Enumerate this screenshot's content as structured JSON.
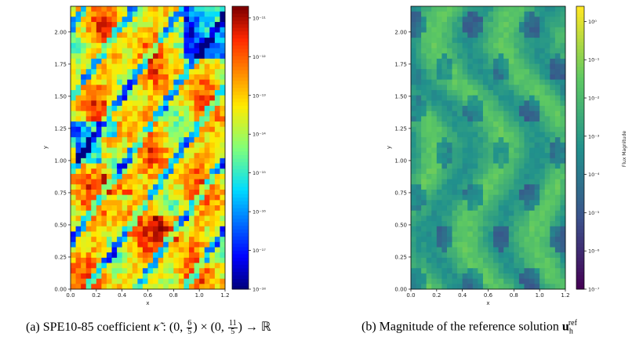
{
  "figures": [
    {
      "caption": {
        "label": "(a)",
        "text_pre": "SPE10-85 coefficient ",
        "symbol": "κ̃",
        "domain_pre": " : (0, ",
        "frac1_num": "6",
        "frac1_den": "5",
        "domain_mid": ") × (0, ",
        "frac2_num": "11",
        "frac2_den": "5",
        "domain_post": ") → ℝ"
      }
    },
    {
      "caption": {
        "label": "(b)",
        "text_pre": "Magnitude of the reference solution ",
        "symbol": "u",
        "sub": "h",
        "sup": "ref"
      }
    }
  ],
  "chart_data": [
    {
      "type": "heatmap",
      "xlabel": "x",
      "ylabel": "y",
      "xlim": [
        0.0,
        1.2
      ],
      "ylim": [
        0.0,
        2.2
      ],
      "xticks": [
        "0.0",
        "0.2",
        "0.4",
        "0.6",
        "0.8",
        "1.0",
        "1.2"
      ],
      "yticks": [
        "0.00",
        "0.25",
        "0.50",
        "0.75",
        "1.00",
        "1.25",
        "1.50",
        "1.75",
        "2.00"
      ],
      "colorbar": {
        "scale": "log",
        "range": [
          1e-18,
          2e-11
        ],
        "colormap": "jet",
        "ticks": [
          "10⁻¹⁸",
          "10⁻¹⁷",
          "10⁻¹⁶",
          "10⁻¹⁵",
          "10⁻¹⁴",
          "10⁻¹³",
          "10⁻¹²",
          "10⁻¹¹"
        ],
        "label": ""
      }
    },
    {
      "type": "heatmap",
      "xlabel": "x",
      "ylabel": "y",
      "xlim": [
        0.0,
        1.2
      ],
      "ylim": [
        0.0,
        2.2
      ],
      "xticks": [
        "0.0",
        "0.2",
        "0.4",
        "0.6",
        "0.8",
        "1.0",
        "1.2"
      ],
      "yticks": [
        "0.00",
        "0.25",
        "0.50",
        "0.75",
        "1.00",
        "1.25",
        "1.50",
        "1.75",
        "2.00"
      ],
      "colorbar": {
        "scale": "log",
        "range": [
          1e-07,
          2.5
        ],
        "colormap": "viridis",
        "ticks": [
          "10⁻⁷",
          "10⁻⁶",
          "10⁻⁵",
          "10⁻⁴",
          "10⁻³",
          "10⁻²",
          "10⁻¹",
          "10⁰"
        ],
        "label": "Flux Magnitude"
      }
    }
  ]
}
